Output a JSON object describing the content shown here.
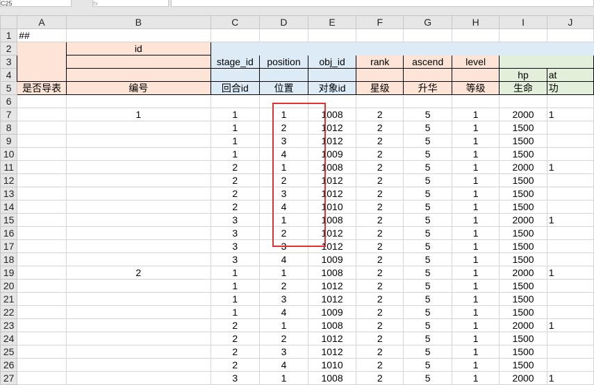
{
  "toolbar": {
    "name_box": "C25",
    "fx_label": "fx",
    "formula": ""
  },
  "columns": [
    "A",
    "B",
    "C",
    "D",
    "E",
    "F",
    "G",
    "H",
    "I",
    "J"
  ],
  "header": {
    "r1_a": "##",
    "r2_b": "id",
    "r3": {
      "c": "stage_id",
      "d": "position",
      "e": "obj_id",
      "f": "rank",
      "g": "ascend",
      "h": "level"
    },
    "r4": {
      "i": "hp",
      "j": "at"
    },
    "r5": {
      "a": "是否导表",
      "b": "编号",
      "c": "回合id",
      "d": "位置",
      "e": "对象id",
      "f": "星级",
      "g": "升华",
      "h": "等级",
      "i": "生命",
      "j": "功"
    }
  },
  "rows": [
    {
      "n": 7,
      "b": "1",
      "c": "1",
      "d": "1",
      "e": "1008",
      "f": "2",
      "g": "5",
      "h": "1",
      "i": "2000",
      "j": "1"
    },
    {
      "n": 8,
      "b": "",
      "c": "1",
      "d": "2",
      "e": "1012",
      "f": "2",
      "g": "5",
      "h": "1",
      "i": "1500",
      "j": ""
    },
    {
      "n": 9,
      "b": "",
      "c": "1",
      "d": "3",
      "e": "1012",
      "f": "2",
      "g": "5",
      "h": "1",
      "i": "1500",
      "j": ""
    },
    {
      "n": 10,
      "b": "",
      "c": "1",
      "d": "4",
      "e": "1009",
      "f": "2",
      "g": "5",
      "h": "1",
      "i": "1500",
      "j": ""
    },
    {
      "n": 11,
      "b": "",
      "c": "2",
      "d": "1",
      "e": "1008",
      "f": "2",
      "g": "5",
      "h": "1",
      "i": "2000",
      "j": "1"
    },
    {
      "n": 12,
      "b": "",
      "c": "2",
      "d": "2",
      "e": "1012",
      "f": "2",
      "g": "5",
      "h": "1",
      "i": "1500",
      "j": ""
    },
    {
      "n": 13,
      "b": "",
      "c": "2",
      "d": "3",
      "e": "1012",
      "f": "2",
      "g": "5",
      "h": "1",
      "i": "1500",
      "j": ""
    },
    {
      "n": 14,
      "b": "",
      "c": "2",
      "d": "4",
      "e": "1010",
      "f": "2",
      "g": "5",
      "h": "1",
      "i": "1500",
      "j": ""
    },
    {
      "n": 15,
      "b": "",
      "c": "3",
      "d": "1",
      "e": "1008",
      "f": "2",
      "g": "5",
      "h": "1",
      "i": "2000",
      "j": "1"
    },
    {
      "n": 16,
      "b": "",
      "c": "3",
      "d": "2",
      "e": "1012",
      "f": "2",
      "g": "5",
      "h": "1",
      "i": "1500",
      "j": ""
    },
    {
      "n": 17,
      "b": "",
      "c": "3",
      "d": "3",
      "e": "1012",
      "f": "2",
      "g": "5",
      "h": "1",
      "i": "1500",
      "j": ""
    },
    {
      "n": 18,
      "b": "",
      "c": "3",
      "d": "4",
      "e": "1009",
      "f": "2",
      "g": "5",
      "h": "1",
      "i": "1500",
      "j": ""
    },
    {
      "n": 19,
      "b": "2",
      "c": "1",
      "d": "1",
      "e": "1008",
      "f": "2",
      "g": "5",
      "h": "1",
      "i": "2000",
      "j": "1"
    },
    {
      "n": 20,
      "b": "",
      "c": "1",
      "d": "2",
      "e": "1012",
      "f": "2",
      "g": "5",
      "h": "1",
      "i": "1500",
      "j": ""
    },
    {
      "n": 21,
      "b": "",
      "c": "1",
      "d": "3",
      "e": "1012",
      "f": "2",
      "g": "5",
      "h": "1",
      "i": "1500",
      "j": ""
    },
    {
      "n": 22,
      "b": "",
      "c": "1",
      "d": "4",
      "e": "1009",
      "f": "2",
      "g": "5",
      "h": "1",
      "i": "1500",
      "j": ""
    },
    {
      "n": 23,
      "b": "",
      "c": "2",
      "d": "1",
      "e": "1008",
      "f": "2",
      "g": "5",
      "h": "1",
      "i": "2000",
      "j": "1"
    },
    {
      "n": 24,
      "b": "",
      "c": "2",
      "d": "2",
      "e": "1012",
      "f": "2",
      "g": "5",
      "h": "1",
      "i": "1500",
      "j": ""
    },
    {
      "n": 25,
      "b": "",
      "c": "2",
      "d": "3",
      "e": "1012",
      "f": "2",
      "g": "5",
      "h": "1",
      "i": "1500",
      "j": ""
    },
    {
      "n": 26,
      "b": "",
      "c": "2",
      "d": "4",
      "e": "1010",
      "f": "2",
      "g": "5",
      "h": "1",
      "i": "1500",
      "j": ""
    },
    {
      "n": 27,
      "b": "",
      "c": "3",
      "d": "1",
      "e": "1008",
      "f": "2",
      "g": "5",
      "h": "1",
      "i": "2000",
      "j": "1"
    }
  ],
  "highlight_color": "#e03030"
}
